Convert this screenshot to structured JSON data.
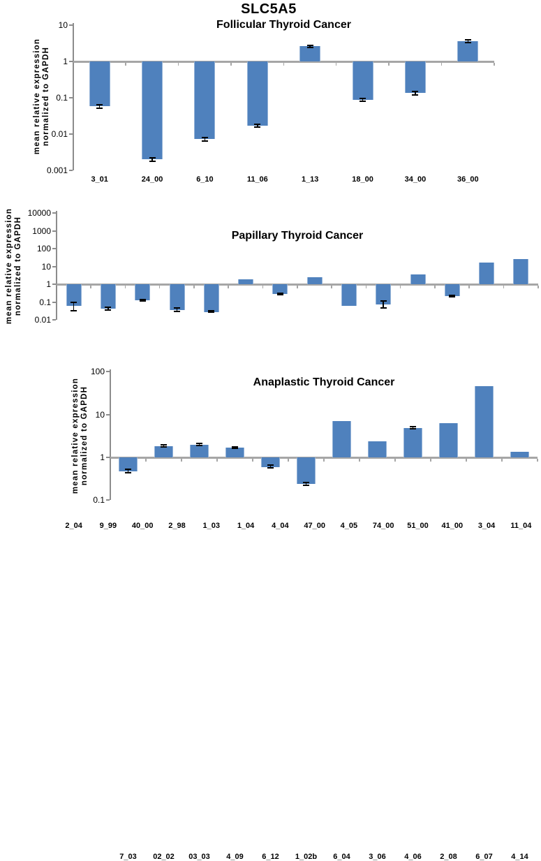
{
  "figure_title": "SLC5A5",
  "y_axis_label": {
    "line1": "mean relative expression",
    "line2": "normalized to GAPDH"
  },
  "colors": {
    "bar": "#4f81bd",
    "baseline": "#a6a6a6",
    "axis": "#8c8c8c",
    "error": "#000000",
    "text": "#000000"
  },
  "chart_data": [
    {
      "type": "bar",
      "title": "Follicular Thyroid Cancer",
      "ylabel": "mean relative expression normalized to GAPDH",
      "yscale": "log",
      "ylim": [
        0.001,
        10
      ],
      "ytick_labels": [
        "10",
        "1",
        "0.1",
        "0.01",
        "0.001"
      ],
      "baseline": 1,
      "grid": false,
      "legend": "none",
      "categories": [
        "3_01",
        "24_00",
        "6_10",
        "11_06",
        "1_13",
        "18_00",
        "34_00",
        "36_00"
      ],
      "values": [
        0.058,
        0.002,
        0.0072,
        0.017,
        2.6,
        0.087,
        0.135,
        3.6
      ],
      "error_low": [
        0.052,
        0.0018,
        0.0065,
        0.0155,
        2.4,
        0.079,
        0.122,
        3.35
      ],
      "error_high": [
        0.065,
        0.0022,
        0.008,
        0.0185,
        2.8,
        0.096,
        0.15,
        3.9
      ]
    },
    {
      "type": "bar",
      "title": "Papillary Thyroid Cancer",
      "ylabel": "mean relative expression normalized to GAPDH",
      "yscale": "log",
      "ylim": [
        0.01,
        10000
      ],
      "ytick_labels": [
        "10000",
        "1000",
        "100",
        "10",
        "1",
        "0.1",
        "0.01"
      ],
      "baseline": 1,
      "grid": false,
      "legend": "none",
      "categories": [
        "2_04",
        "9_99",
        "40_00",
        "2_98",
        "1_03",
        "1_04",
        "4_04",
        "47_00",
        "4_05",
        "74_00",
        "51_00",
        "41_00",
        "3_04",
        "11_04"
      ],
      "values": [
        0.062,
        0.043,
        0.125,
        0.035,
        0.028,
        1.9,
        0.29,
        2.5,
        0.06,
        0.075,
        3.6,
        0.21,
        16,
        26
      ],
      "error_low": [
        0.032,
        0.037,
        0.115,
        0.029,
        0.026,
        null,
        0.26,
        null,
        null,
        0.045,
        null,
        0.19,
        null,
        null
      ],
      "error_high": [
        0.095,
        0.05,
        0.135,
        0.045,
        0.031,
        null,
        0.32,
        null,
        null,
        0.11,
        null,
        0.23,
        null,
        null
      ]
    },
    {
      "type": "bar",
      "title": "Anaplastic Thyroid Cancer",
      "ylabel": "mean relative expression normalized to GAPDH",
      "yscale": "log",
      "ylim": [
        0.1,
        100
      ],
      "ytick_labels": [
        "100",
        "10",
        "1",
        "0.1"
      ],
      "baseline": 1,
      "grid": false,
      "legend": "none",
      "categories": [
        "7_03",
        "02_02",
        "03_03",
        "4_09",
        "6_12",
        "1_02b",
        "6_04",
        "3_06",
        "4_06",
        "2_08",
        "6_07",
        "4_14"
      ],
      "values": [
        0.48,
        1.85,
        2.0,
        1.7,
        0.6,
        0.24,
        7.0,
        2.4,
        4.9,
        6.4,
        47,
        1.35
      ],
      "error_low": [
        0.44,
        1.78,
        1.92,
        1.62,
        0.56,
        0.22,
        null,
        null,
        4.65,
        null,
        null,
        null
      ],
      "error_high": [
        0.52,
        1.93,
        2.1,
        1.79,
        0.65,
        0.26,
        null,
        null,
        5.15,
        null,
        null,
        null
      ]
    }
  ]
}
